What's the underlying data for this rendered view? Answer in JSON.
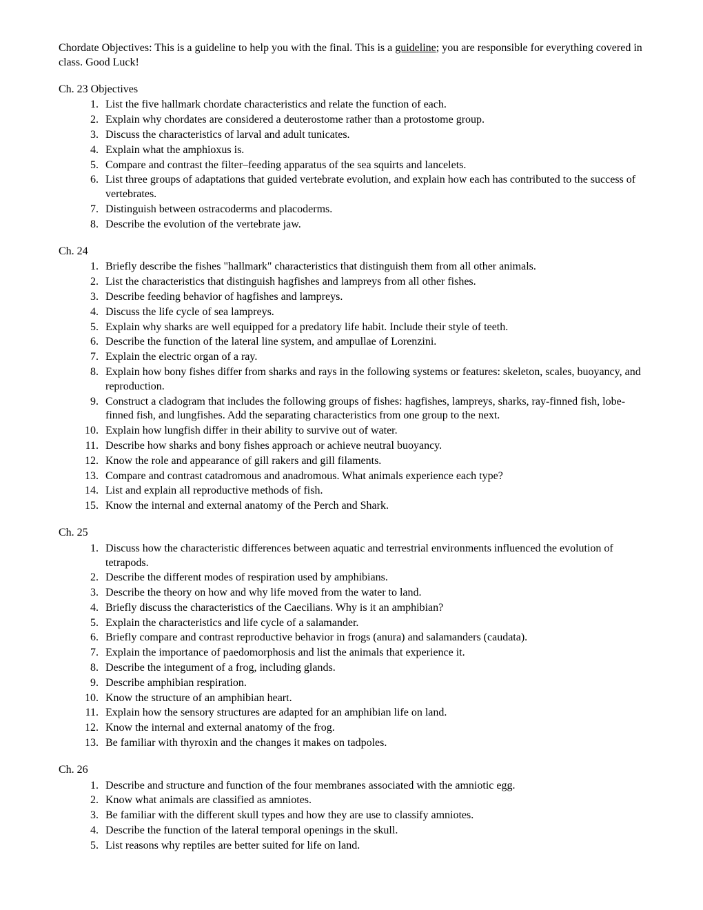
{
  "intro": {
    "part1": "Chordate Objectives:  This is a guideline to help you with the final.  This is a ",
    "underlined": "guideline",
    "part2": "; you are responsible for everything covered in class.   Good Luck!"
  },
  "sections": [
    {
      "heading": "Ch. 23 Objectives",
      "items": [
        "List the five hallmark chordate characteristics and relate the function of each.",
        "Explain why chordates are considered a deuterostome rather than a protostome group.",
        "Discuss the characteristics of larval and adult tunicates.",
        "Explain what the amphioxus is.",
        "Compare and contrast the filter–feeding apparatus of the sea squirts and lancelets.",
        "List three groups of adaptations that guided vertebrate evolution, and explain how each has contributed to the success of vertebrates.",
        "Distinguish between ostracoderms and placoderms.",
        "Describe the evolution of the vertebrate jaw."
      ]
    },
    {
      "heading": "Ch. 24",
      "items": [
        "Briefly describe the fishes \"hallmark\" characteristics that distinguish them from all other animals.",
        "List the characteristics that distinguish hagfishes and lampreys from all other fishes.",
        "Describe feeding behavior of hagfishes and lampreys.",
        "Discuss the life cycle of sea lampreys.",
        "Explain why sharks are well equipped for a predatory life habit. Include their style of teeth.",
        "Describe the function of the lateral line system, and ampullae of Lorenzini.",
        "Explain the electric organ of a ray.",
        "Explain how bony fishes differ from sharks and rays in the following systems or features: skeleton, scales, buoyancy, and reproduction.",
        "Construct a cladogram that includes the following groups of fishes: hagfishes, lampreys, sharks, ray-finned fish, lobe-finned fish, and lungfishes. Add the separating characteristics from one group to the next.",
        "Explain how lungfish differ in their ability to survive out of water.",
        "Describe how sharks and bony fishes approach or achieve neutral buoyancy.",
        "Know the role and appearance of gill rakers and gill filaments.",
        "Compare and contrast catadromous and anadromous. What animals experience each type?",
        "List and explain all reproductive methods of fish.",
        "Know the internal and external anatomy of the Perch and Shark."
      ]
    },
    {
      "heading": "Ch. 25",
      "items": [
        "Discuss how the characteristic differences between aquatic and terrestrial environments influenced the evolution of tetrapods.",
        "Describe the different modes of respiration used by amphibians.",
        "Describe the theory on how and why life moved from the water to land.",
        "Briefly discuss the characteristics of the Caecilians.  Why is it an amphibian?",
        "Explain the characteristics and life cycle of a salamander.",
        "Briefly compare and contrast reproductive behavior in frogs (anura) and salamanders (caudata).",
        "Explain the importance of paedomorphosis and list the animals that experience it.",
        "Describe the integument of a frog, including glands.",
        "Describe amphibian respiration.",
        "Know the structure of an amphibian heart.",
        "Explain how the sensory structures are adapted for an amphibian life on land.",
        "Know the internal and external anatomy of the frog.",
        "Be familiar with thyroxin and the changes it makes on tadpoles."
      ]
    },
    {
      "heading": "Ch. 26",
      "items": [
        "Describe and structure and function of the four membranes associated with the amniotic egg.",
        "Know what animals are classified as amniotes.",
        "Be familiar with the different skull types and how they are use to classify amniotes.",
        "Describe the function of the lateral temporal openings in the skull.",
        "List reasons why reptiles are better suited for life on land."
      ]
    }
  ]
}
